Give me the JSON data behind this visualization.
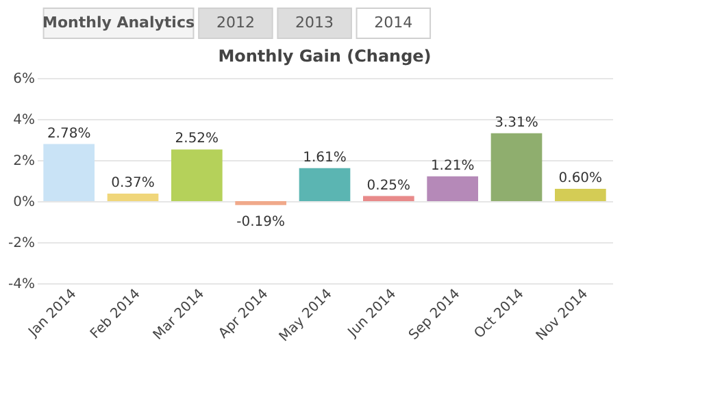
{
  "chart_data": {
    "type": "bar",
    "title": "Monthly Gain (Change)",
    "annotations": [
      "Monthly Analytics",
      "2012",
      "2013",
      "2014"
    ],
    "categories": [
      "Jan 2014",
      "Feb 2014",
      "Mar 2014",
      "Apr 2014",
      "May 2014",
      "Jun 2014",
      "Sep 2014",
      "Oct 2014",
      "Nov 2014"
    ],
    "values": [
      2.78,
      0.37,
      2.52,
      -0.19,
      1.61,
      0.25,
      1.21,
      3.31,
      0.6
    ],
    "value_labels": [
      "2.78%",
      "0.37%",
      "2.52%",
      "-0.19%",
      "1.61%",
      "0.25%",
      "1.21%",
      "3.31%",
      "0.60%"
    ],
    "colors": [
      "#c9e3f6",
      "#f0d67a",
      "#b5d15a",
      "#f0a98a",
      "#5bb5b2",
      "#e88a8a",
      "#b589b8",
      "#8fae6e",
      "#d4cc55"
    ],
    "ylim": [
      -4,
      6
    ],
    "yticks": [
      {
        "value": -4,
        "label": "-4%"
      },
      {
        "value": -2,
        "label": "-2%"
      },
      {
        "value": 0,
        "label": "0%"
      },
      {
        "value": 2,
        "label": "2%"
      },
      {
        "value": 4,
        "label": "4%"
      },
      {
        "value": 6,
        "label": "6%"
      }
    ],
    "grid": "y"
  }
}
